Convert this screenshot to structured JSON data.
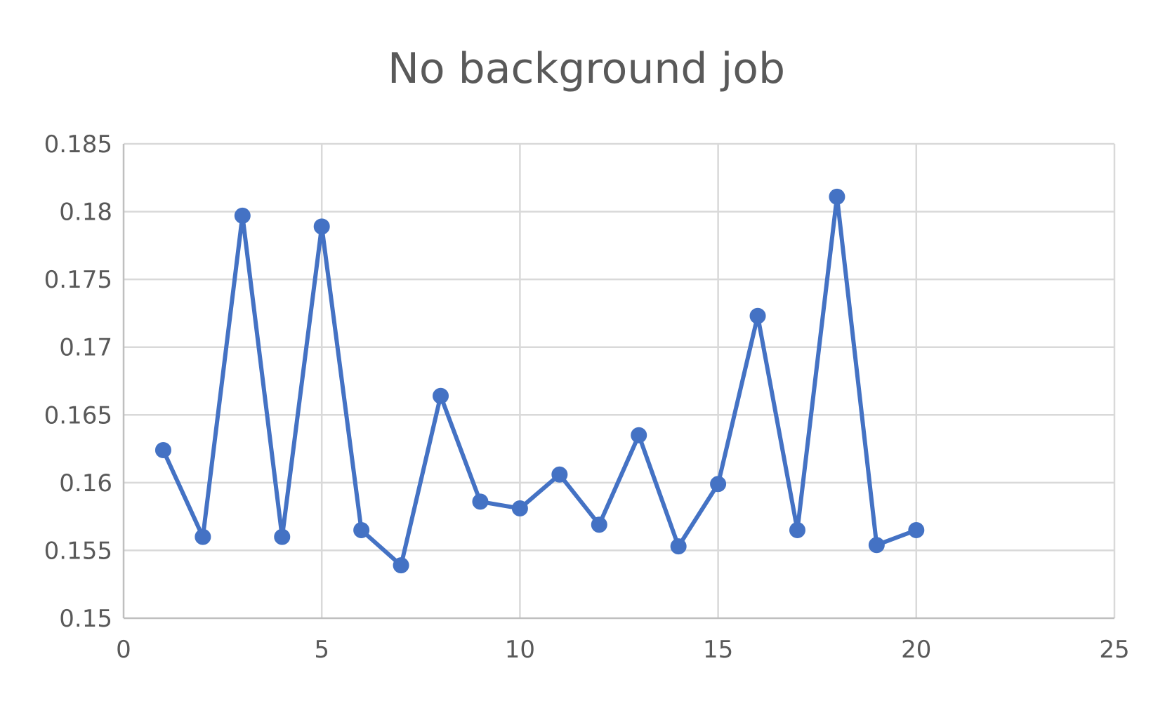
{
  "chart_data": {
    "type": "line",
    "title": "No background job",
    "xlabel": "",
    "ylabel": "",
    "xlim": [
      0,
      25
    ],
    "ylim": [
      0.15,
      0.185
    ],
    "x_ticks": [
      0,
      5,
      10,
      15,
      20,
      25
    ],
    "x_tick_labels": [
      "0",
      "5",
      "10",
      "15",
      "20",
      "25"
    ],
    "y_ticks": [
      0.15,
      0.155,
      0.16,
      0.165,
      0.17,
      0.175,
      0.18,
      0.185
    ],
    "y_tick_labels": [
      "0.15",
      "0.155",
      "0.16",
      "0.165",
      "0.17",
      "0.175",
      "0.18",
      "0.185"
    ],
    "grid": true,
    "legend": "none",
    "series": [
      {
        "color": "#4472c4",
        "markers": true,
        "x": [
          1,
          2,
          3,
          4,
          5,
          6,
          7,
          8,
          9,
          10,
          11,
          12,
          13,
          14,
          15,
          16,
          17,
          18,
          19,
          20
        ],
        "y": [
          0.1624,
          0.156,
          0.1797,
          0.156,
          0.1789,
          0.1565,
          0.1539,
          0.1664,
          0.1586,
          0.1581,
          0.1606,
          0.1569,
          0.1635,
          0.1553,
          0.1599,
          0.1723,
          0.1565,
          0.1811,
          0.1554,
          0.1565
        ]
      }
    ]
  }
}
